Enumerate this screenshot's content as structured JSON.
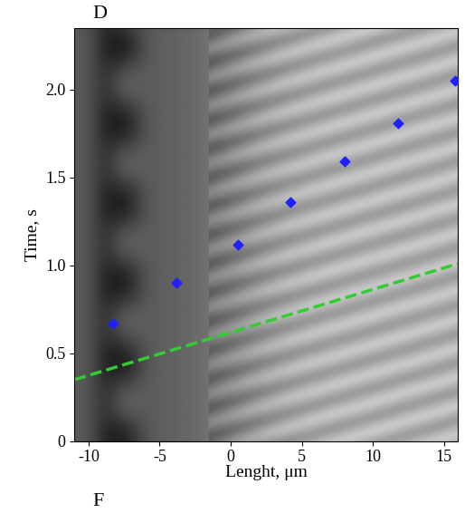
{
  "chart_data": {
    "type": "scatter",
    "panel_labels": [
      "D",
      "F"
    ],
    "x_label": "Lenght, μm",
    "y_label": "Time, s",
    "xlim": [
      -11,
      16
    ],
    "ylim": [
      0,
      2.35
    ],
    "xticks": [
      -10,
      -5,
      0,
      5,
      10,
      15
    ],
    "yticks": [
      0,
      0.5,
      {
        "value": 1.0,
        "label": "1.0"
      },
      1.5,
      {
        "value": 2.0,
        "label": "2.0"
      }
    ],
    "grid": false,
    "points": {
      "x": [
        -8.3,
        -3.8,
        0.5,
        4.2,
        8.0,
        11.8,
        15.8
      ],
      "y": [
        0.67,
        0.9,
        1.12,
        1.36,
        1.59,
        1.81,
        2.05
      ],
      "color": "#1f1fff",
      "marker": "diamond"
    },
    "line": {
      "x": [
        -11,
        16
      ],
      "y": [
        0.35,
        1.01
      ],
      "color": "#33cc33",
      "line_style": "dashed"
    }
  }
}
